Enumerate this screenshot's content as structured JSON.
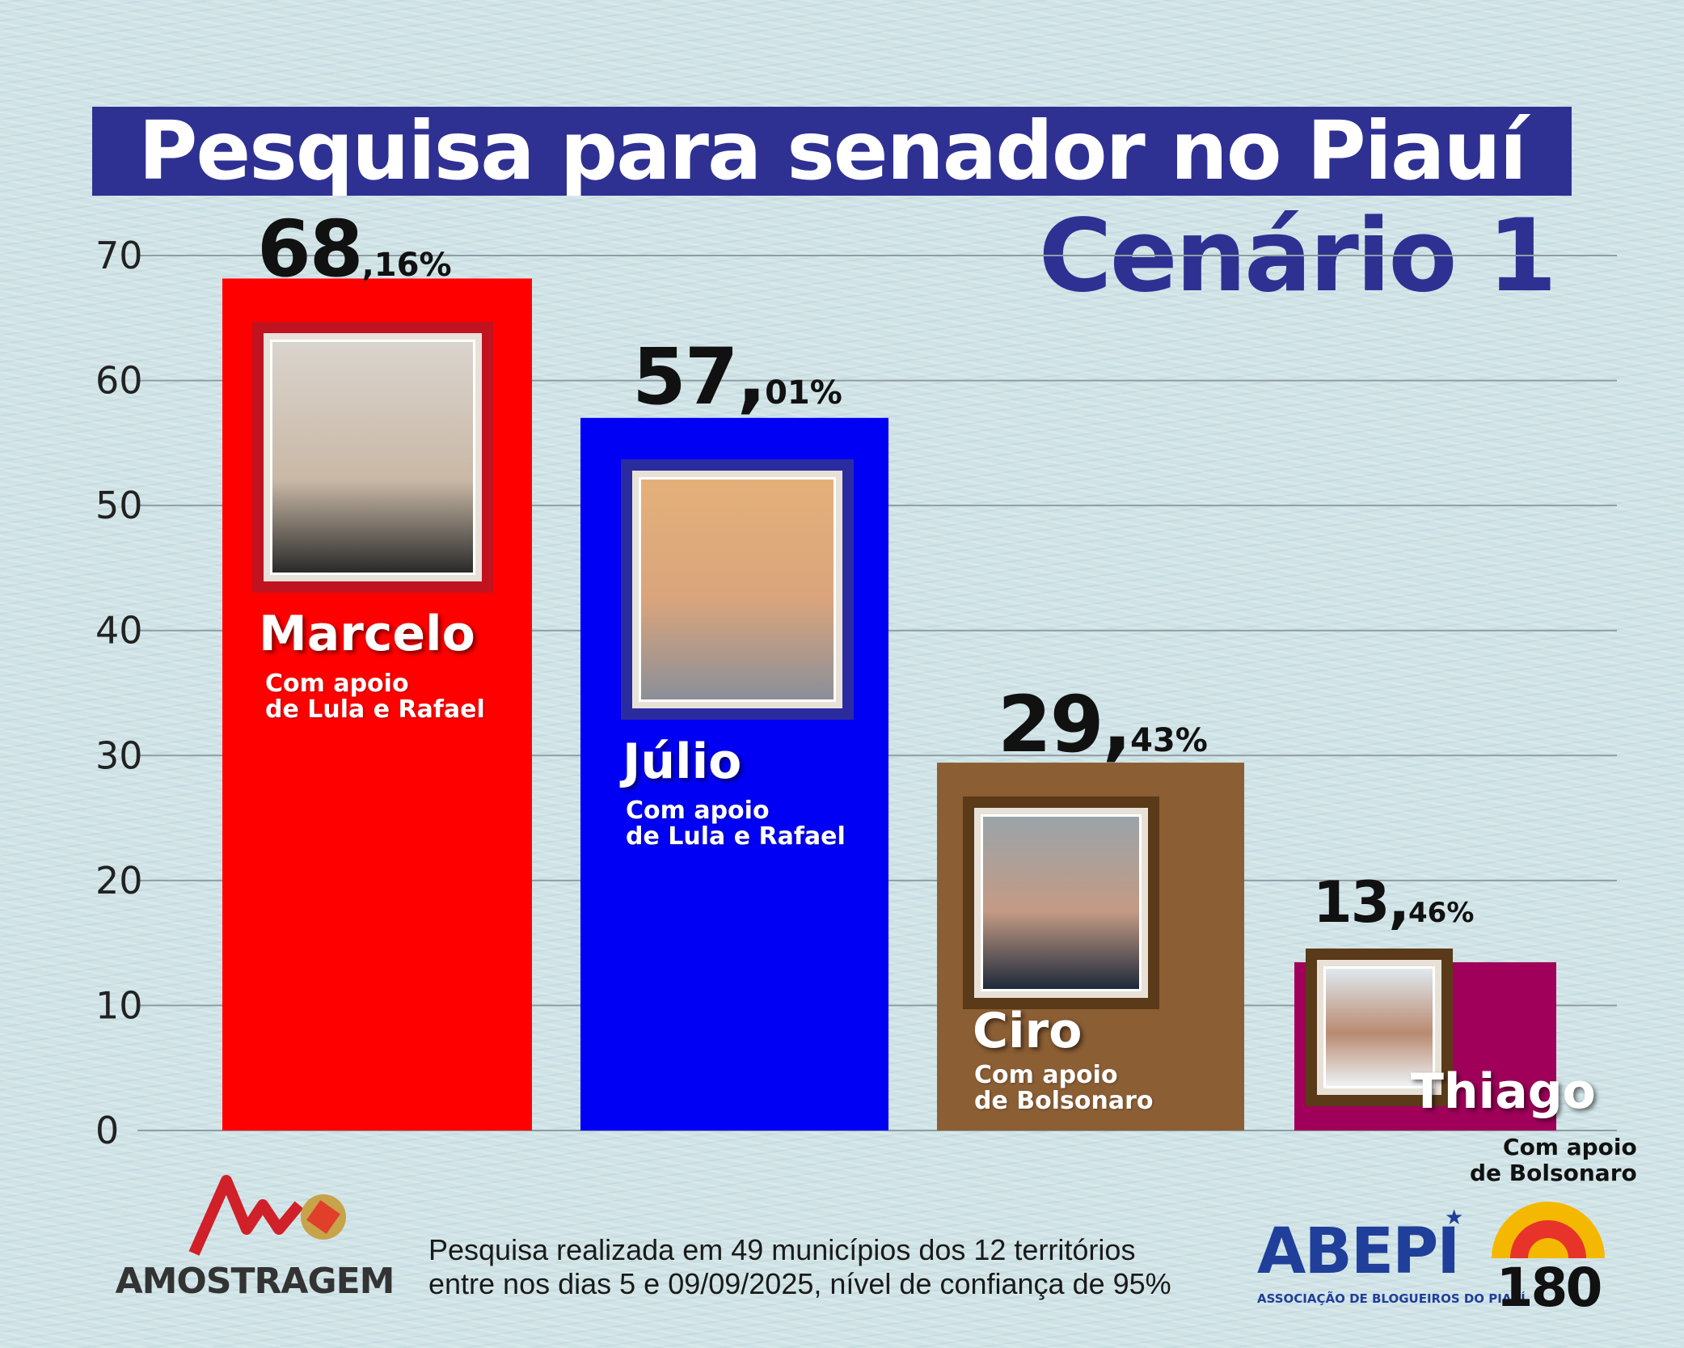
{
  "header": {
    "title": "Pesquisa para senador no Piauí",
    "subtitle": "Cenário 1"
  },
  "chart_data": {
    "type": "bar",
    "categories": [
      "Marcelo",
      "Júlio",
      "Ciro",
      "Thiago"
    ],
    "values": [
      68.16,
      57.01,
      29.43,
      13.46
    ],
    "value_labels": [
      {
        "big": "68",
        "small": ",16%"
      },
      {
        "big": "57,",
        "small": "01%"
      },
      {
        "big": "29,",
        "small": "43%"
      },
      {
        "big": "13,",
        "small": "46%"
      }
    ],
    "colors": [
      "#ff0000",
      "#0000f5",
      "#8b5e34",
      "#a0005a"
    ],
    "support": [
      [
        "Com apoio",
        "de Lula e Rafael"
      ],
      [
        "Com apoio",
        "de Lula e Rafael"
      ],
      [
        "Com apoio",
        "de Bolsonaro"
      ],
      [
        "Com apoio",
        "de Bolsonaro"
      ]
    ],
    "yticks": [
      "0",
      "10",
      "20",
      "30",
      "40",
      "50",
      "60",
      "70"
    ],
    "ylim": [
      0,
      70
    ],
    "grid": true
  },
  "footer": {
    "note_line1": "Pesquisa realizada em 49 municípios dos 12 territórios",
    "note_line2": "entre nos dias 5 e 09/09/2025, nível de confiança de 95%",
    "logo_amostragem": "AMOSTRAGEM",
    "logo_abepi": "ABEPI",
    "logo_abepi_sub": "ASSOCIAÇÃO DE BLOGUEIROS DO PIAUÍ",
    "logo_180": "180"
  }
}
